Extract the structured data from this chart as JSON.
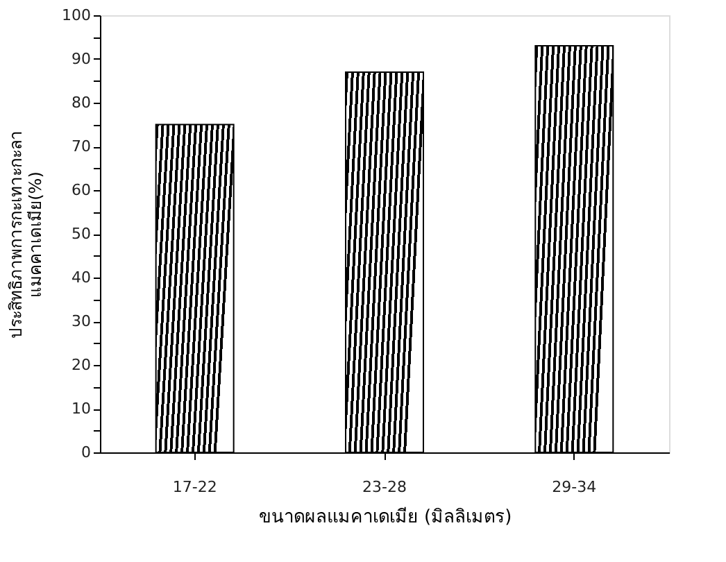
{
  "chart_data": {
    "type": "bar",
    "xlabel": "ขนาดผลแมคาเดเมีย (มิลลิเมตร)",
    "ylabel": "ประสิทธิภาพการกะเทาะกะลา\nแมคคาเดเมีย(%)",
    "categories": [
      "17-22",
      "23-28",
      "29-34"
    ],
    "values": [
      75,
      87,
      93
    ],
    "color": "#000000",
    "ylim": [
      0,
      100
    ],
    "yticks": [
      0,
      {
        "value": 5,
        "label": null
      },
      10,
      {
        "value": 15,
        "label": null
      },
      20,
      {
        "value": 25,
        "label": null
      },
      30,
      {
        "value": 35,
        "label": null
      },
      40,
      {
        "value": 45,
        "label": null
      },
      50,
      {
        "value": 55,
        "label": null
      },
      60,
      {
        "value": 65,
        "label": null
      },
      70,
      {
        "value": 75,
        "label": null
      },
      80,
      {
        "value": 85,
        "label": null
      },
      90,
      {
        "value": 95,
        "label": null
      },
      100
    ],
    "grid": false
  }
}
